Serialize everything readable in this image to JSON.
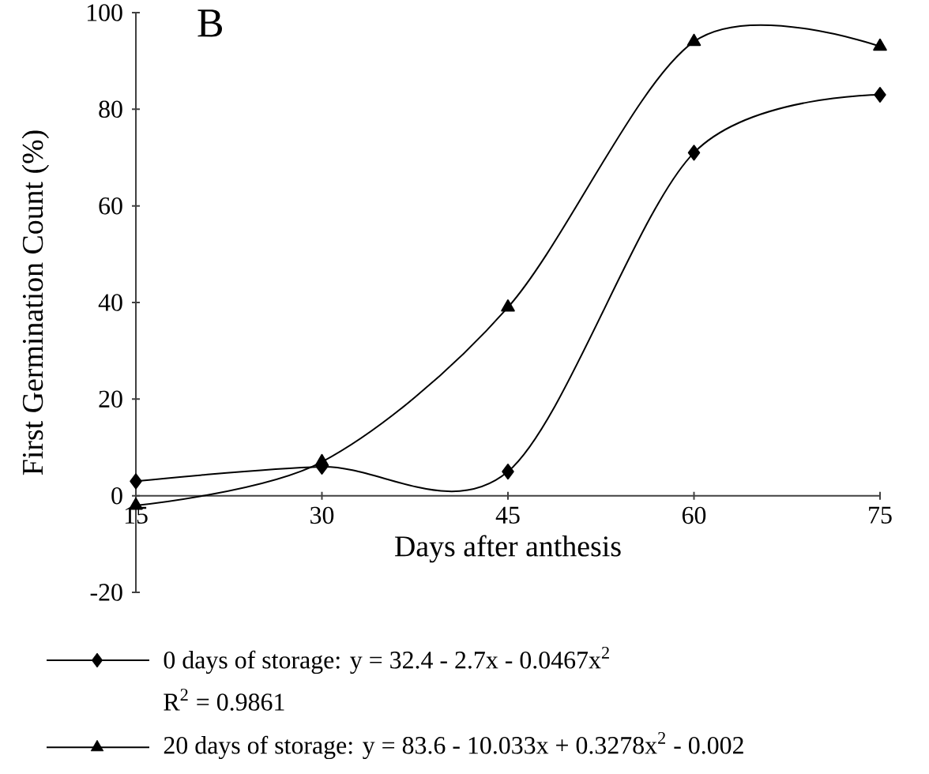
{
  "chart_data": {
    "type": "line",
    "xlabel": "Days after anthesis",
    "ylabel": "First Germination Count (%)",
    "x": [
      15,
      30,
      45,
      60,
      75
    ],
    "series": [
      {
        "name": "0 days of storage: y = 32.4 - 2.7x - 0.0467x$^{2}$",
        "color": "#000000",
        "marker": "diamond",
        "values": [
          3,
          6,
          5,
          71,
          83
        ]
      },
      {
        "name": "20 days of storage: y = 83.6 - 10.033x + 0.3278x$^{2}$ - 0.002",
        "color": "#000000",
        "marker": "triangle",
        "values": [
          -2,
          7,
          39,
          94,
          93
        ]
      }
    ],
    "xlim": [
      15,
      75
    ],
    "xticks": [
      15,
      30,
      45,
      60,
      75
    ],
    "ylim": [
      -20,
      100
    ],
    "yticks": [
      -20,
      0,
      20,
      40,
      60,
      80,
      100
    ],
    "line_style": "solid",
    "grid": false,
    "legend": "bottom",
    "annotations": [
      "B",
      "R$^{2}$ = 0.9861"
    ]
  }
}
